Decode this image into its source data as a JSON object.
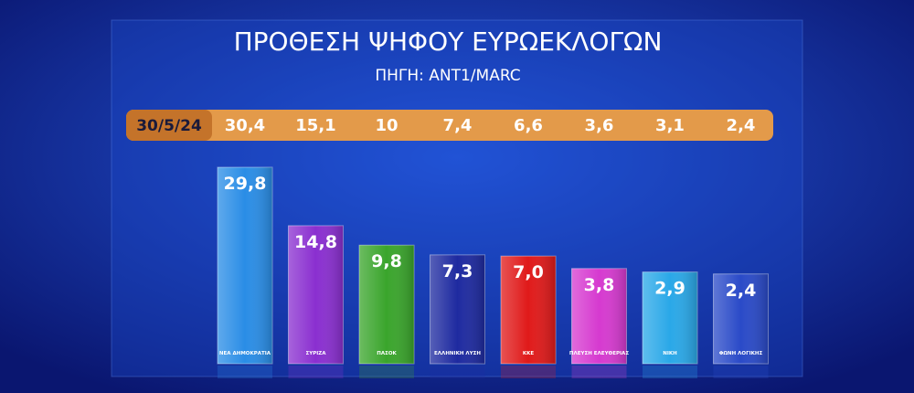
{
  "chart_data": {
    "type": "bar",
    "title": "ΠΡΟΘΕΣΗ ΨΗΦΟΥ ΕΥΡΩΕΚΛΟΓΩΝ",
    "subtitle": "ΠΗΓΗ: ANT1/MARC",
    "categories": [
      "ΝΕΑ ΔΗΜΟΚΡΑΤΙΑ",
      "ΣΥΡΙΖΑ",
      "ΠΑΣΟΚ",
      "ΕΛΛΗΝΙΚΗ ΛΥΣΗ",
      "ΚΚΕ",
      "ΠΛΕΥΣΗ ΕΛΕΥΘΕΡΙΑΣ",
      "ΝΙΚΗ",
      "ΦΩΝΗ ΛΟΓΙΚΗΣ"
    ],
    "values": [
      29.8,
      14.8,
      9.8,
      7.3,
      7.0,
      3.8,
      2.9,
      2.4
    ],
    "value_labels": [
      "29,8",
      "14,8",
      "9,8",
      "7,3",
      "7,0",
      "3,8",
      "2,9",
      "2,4"
    ],
    "colors": [
      "#2a8de6",
      "#8a2fd0",
      "#3aa52c",
      "#1e2aa0",
      "#e01a1a",
      "#d63ad0",
      "#2aa8e8",
      "#2a4ac8"
    ],
    "previous": {
      "date": "30/5/24",
      "values": [
        30.4,
        15.1,
        10,
        7.4,
        6.6,
        3.6,
        3.1,
        2.4
      ],
      "value_labels": [
        "30,4",
        "15,1",
        "10",
        "7,4",
        "6,6",
        "3,6",
        "3,1",
        "2,4"
      ]
    }
  }
}
